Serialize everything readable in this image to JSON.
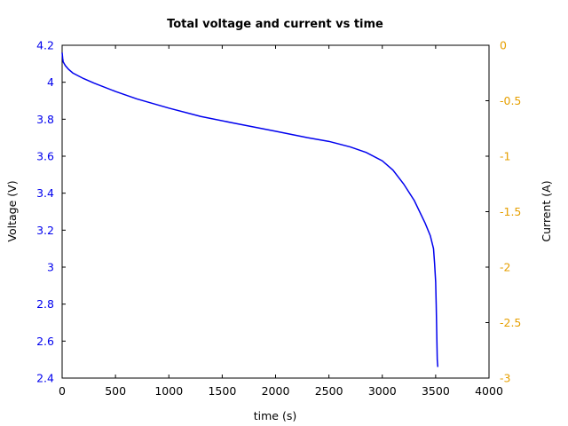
{
  "chart_data": {
    "type": "line",
    "title": "Total voltage and current vs time",
    "xlabel": "time (s)",
    "ylabel": "Voltage (V)",
    "y2label": "Current (A)",
    "xlim": [
      0,
      4000
    ],
    "ylim": [
      2.4,
      4.2
    ],
    "y2lim": [
      -3,
      0
    ],
    "xticks": [
      "0",
      "500",
      "1000",
      "1500",
      "2000",
      "2500",
      "3000",
      "3500",
      "4000"
    ],
    "yticks": [
      "2.4",
      "2.6",
      "2.8",
      "3",
      "3.2",
      "3.4",
      "3.6",
      "3.8",
      "4",
      "4.2"
    ],
    "y2ticks": [
      "-3",
      "-2.5",
      "-2",
      "-1.5",
      "-1",
      "-0.5",
      "0"
    ],
    "grid": false,
    "colors": {
      "voltage": "#0000ee",
      "current_axis": "#e69f00",
      "axes": "#000000"
    },
    "series": [
      {
        "axis": "left",
        "x": [
          0,
          5,
          10,
          30,
          60,
          100,
          200,
          300,
          500,
          700,
          1000,
          1300,
          1600,
          2000,
          2300,
          2500,
          2700,
          2850,
          3000,
          3100,
          3200,
          3300,
          3400,
          3450,
          3480,
          3490,
          3500,
          3505,
          3510,
          3515,
          3520
        ],
        "y": [
          4.16,
          4.13,
          4.11,
          4.09,
          4.07,
          4.05,
          4.02,
          3.995,
          3.95,
          3.91,
          3.86,
          3.815,
          3.78,
          3.735,
          3.7,
          3.68,
          3.65,
          3.62,
          3.575,
          3.525,
          3.45,
          3.36,
          3.24,
          3.17,
          3.1,
          3.02,
          2.92,
          2.8,
          2.65,
          2.5,
          2.46
        ]
      }
    ]
  }
}
